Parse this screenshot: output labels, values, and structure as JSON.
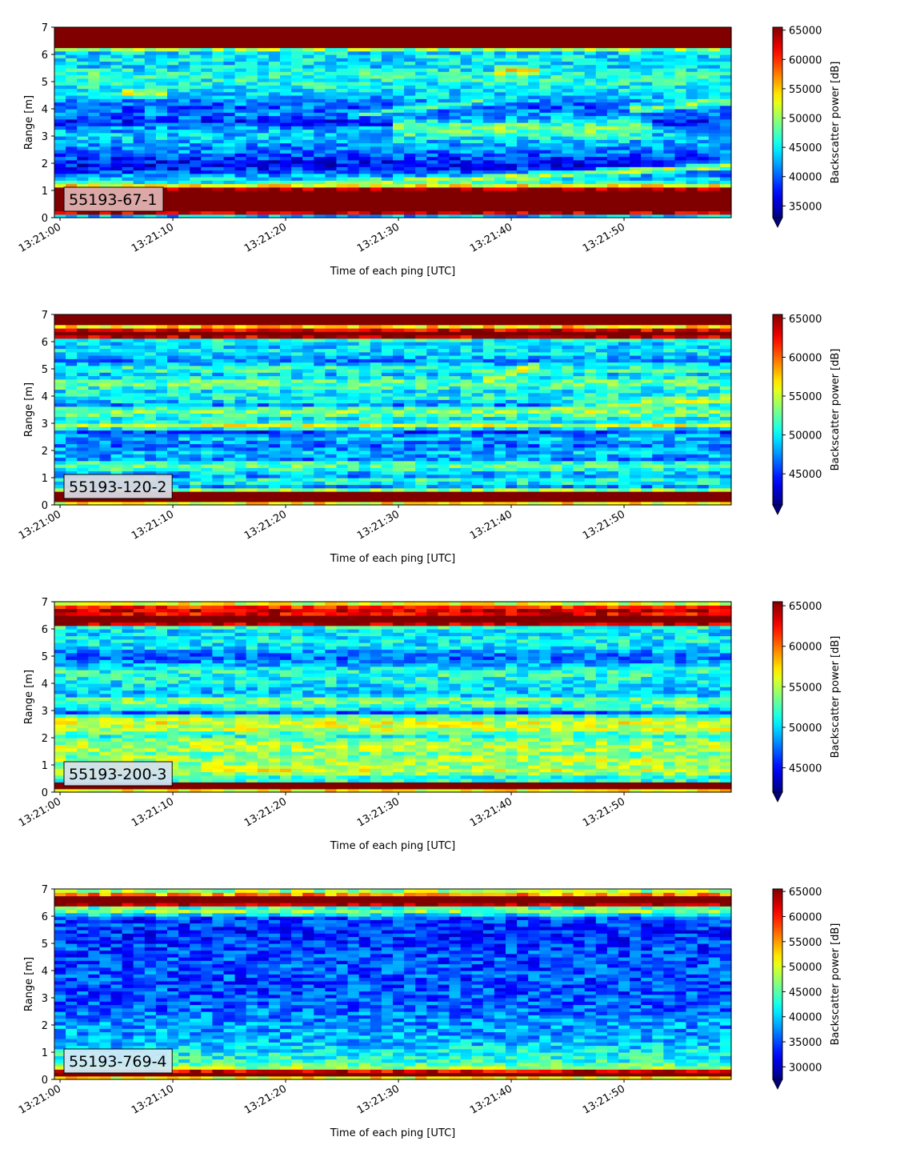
{
  "chart_data": [
    {
      "type": "heatmap",
      "label": "55193-67-1",
      "label_bg": "#e0b0b0",
      "xlabel": "Time of each ping [UTC]",
      "ylabel": "Range [m]",
      "x_ticks": [
        "13:21:00",
        "13:21:10",
        "13:21:20",
        "13:21:30",
        "13:21:40",
        "13:21:50"
      ],
      "xlim_seconds": [
        -0.5,
        59.5
      ],
      "ylim": [
        0,
        7
      ],
      "y_ticks": [
        0,
        1,
        2,
        3,
        4,
        5,
        6,
        7
      ],
      "colorbar_label": "Backscatter power [dB]",
      "colorbar_ticks": [
        35000,
        40000,
        45000,
        50000,
        55000,
        60000,
        65000
      ],
      "clim": [
        33000,
        65500
      ],
      "colormap": "jet",
      "colorbar_extend": "min",
      "profile": [
        [
          0.0,
          33000
        ],
        [
          0.2,
          65500
        ],
        [
          0.85,
          65500
        ],
        [
          1.05,
          65500
        ],
        [
          1.15,
          58000
        ],
        [
          1.25,
          46000
        ],
        [
          1.45,
          44000
        ],
        [
          1.65,
          40000
        ],
        [
          1.9,
          37000
        ],
        [
          2.1,
          38000
        ],
        [
          2.4,
          41000
        ],
        [
          2.7,
          42000
        ],
        [
          3.0,
          44000
        ],
        [
          3.3,
          42000
        ],
        [
          3.5,
          38000
        ],
        [
          3.8,
          41000
        ],
        [
          4.1,
          40000
        ],
        [
          4.4,
          43000
        ],
        [
          4.7,
          45000
        ],
        [
          5.0,
          46000
        ],
        [
          5.3,
          46500
        ],
        [
          5.6,
          44000
        ],
        [
          5.9,
          45000
        ],
        [
          6.15,
          44000
        ],
        [
          6.3,
          65500
        ],
        [
          7.0,
          65500
        ]
      ],
      "noise": 3600,
      "features": [
        {
          "y0": 1.2,
          "y1": 1.9,
          "t0": 24,
          "t1": 59.5,
          "peak": 51000,
          "width": 0.13
        },
        {
          "y0": 3.3,
          "y1": 3.3,
          "t0": 30,
          "t1": 52,
          "peak": 49000,
          "width": 0.35
        },
        {
          "y0": 3.8,
          "y1": 4.4,
          "t0": 26,
          "t1": 40,
          "peak": 47000,
          "width": 0.12
        },
        {
          "y0": 4.6,
          "y1": 4.6,
          "t0": 6,
          "t1": 9,
          "peak": 52000,
          "width": 0.12
        },
        {
          "y0": 5.4,
          "y1": 5.4,
          "t0": 39,
          "t1": 42,
          "peak": 54000,
          "width": 0.15
        },
        {
          "y0": 4.0,
          "y1": 4.3,
          "t0": 51,
          "t1": 59.5,
          "peak": 50000,
          "width": 0.15
        }
      ]
    },
    {
      "type": "heatmap",
      "label": "55193-120-2",
      "label_bg": "#d8d8e2",
      "xlabel": "Time of each ping [UTC]",
      "ylabel": "Range [m]",
      "x_ticks": [
        "13:21:00",
        "13:21:10",
        "13:21:20",
        "13:21:30",
        "13:21:40",
        "13:21:50"
      ],
      "xlim_seconds": [
        -0.5,
        59.5
      ],
      "ylim": [
        0,
        7
      ],
      "y_ticks": [
        0,
        1,
        2,
        3,
        4,
        5,
        6,
        7
      ],
      "colorbar_label": "Backscatter power [dB]",
      "colorbar_ticks": [
        45000,
        50000,
        55000,
        60000,
        65000
      ],
      "clim": [
        41000,
        65500
      ],
      "colormap": "jet",
      "colorbar_extend": "min",
      "profile": [
        [
          0.0,
          41000
        ],
        [
          0.1,
          65500
        ],
        [
          0.5,
          65500
        ],
        [
          0.6,
          46000
        ],
        [
          0.75,
          49000
        ],
        [
          0.9,
          52000
        ],
        [
          1.1,
          47000
        ],
        [
          1.3,
          51000
        ],
        [
          1.5,
          53000
        ],
        [
          1.7,
          47000
        ],
        [
          1.9,
          49000
        ],
        [
          2.2,
          47000
        ],
        [
          2.5,
          49000
        ],
        [
          2.7,
          45000
        ],
        [
          2.95,
          56000
        ],
        [
          3.1,
          49000
        ],
        [
          3.3,
          52000
        ],
        [
          3.5,
          54000
        ],
        [
          3.7,
          47000
        ],
        [
          3.9,
          51000
        ],
        [
          4.2,
          50000
        ],
        [
          4.5,
          53000
        ],
        [
          4.8,
          49000
        ],
        [
          5.0,
          52000
        ],
        [
          5.3,
          47000
        ],
        [
          5.6,
          50000
        ],
        [
          5.9,
          49000
        ],
        [
          6.1,
          51000
        ],
        [
          6.2,
          65500
        ],
        [
          6.4,
          65500
        ],
        [
          6.55,
          56000
        ],
        [
          6.65,
          65500
        ],
        [
          7.0,
          65500
        ]
      ],
      "noise": 2700,
      "features": [
        {
          "y0": 4.6,
          "y1": 5.1,
          "t0": 38,
          "t1": 42,
          "peak": 57000,
          "width": 0.12
        },
        {
          "y0": 3.5,
          "y1": 3.9,
          "t0": 44,
          "t1": 59.5,
          "peak": 55000,
          "width": 0.15
        }
      ]
    },
    {
      "type": "heatmap",
      "label": "55193-200-3",
      "label_bg": "#d2e2ee",
      "xlabel": "Time of each ping [UTC]",
      "ylabel": "Range [m]",
      "x_ticks": [
        "13:21:00",
        "13:21:10",
        "13:21:20",
        "13:21:30",
        "13:21:40",
        "13:21:50"
      ],
      "xlim_seconds": [
        -0.5,
        59.5
      ],
      "ylim": [
        0,
        7
      ],
      "y_ticks": [
        0,
        1,
        2,
        3,
        4,
        5,
        6,
        7
      ],
      "colorbar_label": "Backscatter power [dB]",
      "colorbar_ticks": [
        45000,
        50000,
        55000,
        60000,
        65000
      ],
      "clim": [
        42000,
        65500
      ],
      "colormap": "jet",
      "colorbar_extend": "min",
      "profile": [
        [
          0.0,
          42000
        ],
        [
          0.1,
          65500
        ],
        [
          0.35,
          65500
        ],
        [
          0.45,
          50000
        ],
        [
          0.6,
          52000
        ],
        [
          0.8,
          56000
        ],
        [
          1.0,
          54000
        ],
        [
          1.2,
          55000
        ],
        [
          1.4,
          53000
        ],
        [
          1.6,
          55000
        ],
        [
          1.9,
          54000
        ],
        [
          2.1,
          51000
        ],
        [
          2.3,
          55000
        ],
        [
          2.6,
          56000
        ],
        [
          2.8,
          53000
        ],
        [
          2.95,
          46000
        ],
        [
          3.1,
          52000
        ],
        [
          3.4,
          54000
        ],
        [
          3.6,
          49000
        ],
        [
          3.8,
          50000
        ],
        [
          4.1,
          51000
        ],
        [
          4.4,
          52000
        ],
        [
          4.7,
          49000
        ],
        [
          5.0,
          47000
        ],
        [
          5.3,
          50000
        ],
        [
          5.6,
          51000
        ],
        [
          5.9,
          50000
        ],
        [
          6.1,
          52000
        ],
        [
          6.2,
          65500
        ],
        [
          6.45,
          65500
        ],
        [
          6.6,
          62000
        ],
        [
          6.75,
          65500
        ],
        [
          6.9,
          56000
        ],
        [
          7.0,
          56000
        ]
      ],
      "noise": 2500,
      "features": []
    },
    {
      "type": "heatmap",
      "label": "55193-769-4",
      "label_bg": "#cfe8f6",
      "xlabel": "Time of each ping [UTC]",
      "ylabel": "Range [m]",
      "x_ticks": [
        "13:21:00",
        "13:21:10",
        "13:21:20",
        "13:21:30",
        "13:21:40",
        "13:21:50"
      ],
      "xlim_seconds": [
        -0.5,
        59.5
      ],
      "ylim": [
        0,
        7
      ],
      "y_ticks": [
        0,
        1,
        2,
        3,
        4,
        5,
        6,
        7
      ],
      "colorbar_label": "Backscatter power [dB]",
      "colorbar_ticks": [
        30000,
        35000,
        40000,
        45000,
        50000,
        55000,
        60000,
        65000
      ],
      "clim": [
        27500,
        65500
      ],
      "colormap": "jet",
      "colorbar_extend": "min",
      "profile": [
        [
          0.0,
          27500
        ],
        [
          0.1,
          65500
        ],
        [
          0.25,
          65500
        ],
        [
          0.35,
          60000
        ],
        [
          0.45,
          46000
        ],
        [
          0.7,
          43000
        ],
        [
          1.0,
          42000
        ],
        [
          1.4,
          39000
        ],
        [
          2.0,
          38000
        ],
        [
          2.5,
          36500
        ],
        [
          3.0,
          35500
        ],
        [
          3.5,
          35000
        ],
        [
          4.0,
          35500
        ],
        [
          4.5,
          35000
        ],
        [
          5.0,
          34500
        ],
        [
          5.5,
          34000
        ],
        [
          6.0,
          35000
        ],
        [
          6.15,
          48000
        ],
        [
          6.3,
          42000
        ],
        [
          6.45,
          65500
        ],
        [
          6.7,
          65500
        ],
        [
          6.85,
          52000
        ],
        [
          7.0,
          45000
        ]
      ],
      "noise": 4200,
      "features": []
    }
  ]
}
